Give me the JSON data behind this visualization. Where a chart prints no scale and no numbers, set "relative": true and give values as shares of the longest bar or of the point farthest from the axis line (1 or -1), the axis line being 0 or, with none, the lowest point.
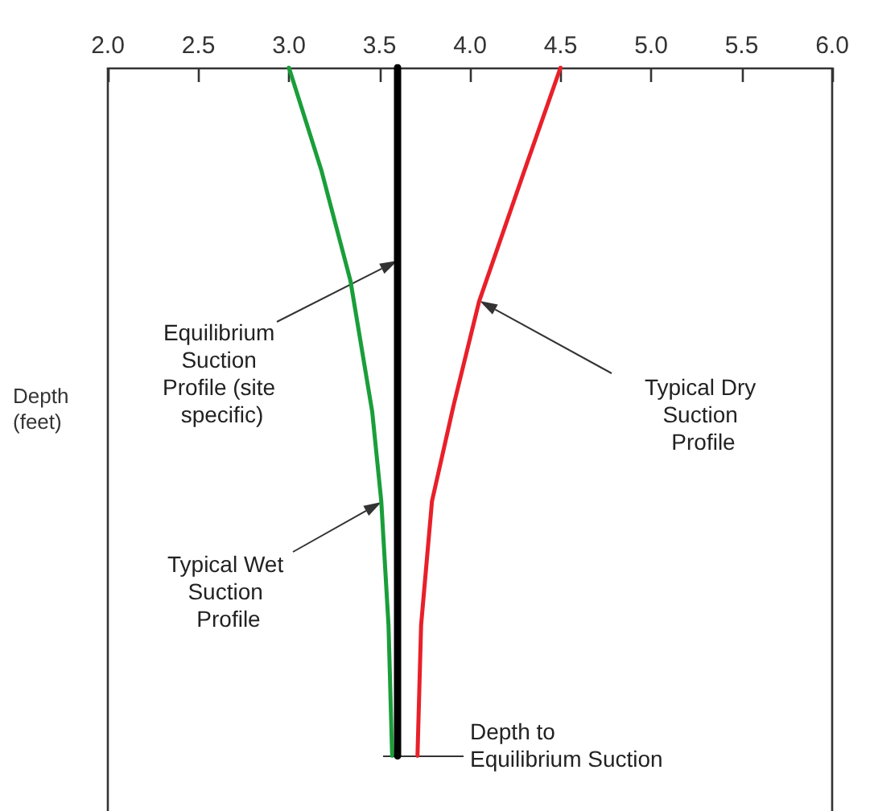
{
  "chart_data": {
    "type": "line",
    "relative": true,
    "ylabel": "Depth (feet)",
    "xlim": [
      2,
      6
    ],
    "xticks": [
      {
        "value": 2,
        "label": "2.0"
      },
      {
        "value": 2.5,
        "label": "2.5"
      },
      {
        "value": 3,
        "label": "3.0"
      },
      {
        "value": 3.5,
        "label": "3.5"
      },
      {
        "value": 4,
        "label": "4.0"
      },
      {
        "value": 4.5,
        "label": "4.5"
      },
      {
        "value": 5,
        "label": "5.0"
      },
      {
        "value": 5.5,
        "label": "5.5"
      },
      {
        "value": 6,
        "label": "6.0"
      }
    ],
    "series": [
      {
        "color": "#1a9e3a",
        "x": [
          3.0,
          3.18,
          3.34,
          3.46,
          3.51,
          3.55,
          3.57
        ],
        "values": [
          0,
          -0.15,
          -0.31,
          -0.5,
          -0.63,
          -0.81,
          -1
        ]
      },
      {
        "color": "#000000",
        "x": [
          3.6,
          3.6
        ],
        "values": [
          0,
          -1
        ]
      },
      {
        "color": "#e8202a",
        "x": [
          4.5,
          4.3,
          4.05,
          3.91,
          3.79,
          3.73,
          3.71
        ],
        "values": [
          0,
          -0.15,
          -0.34,
          -0.49,
          -0.63,
          -0.81,
          -1
        ]
      }
    ],
    "annotations": [
      "Equilibrium Suction Profile (site specific)",
      "Typical Dry Suction Profile",
      "Typical Wet Suction Profile",
      "Depth to Equilibrium Suction"
    ]
  }
}
